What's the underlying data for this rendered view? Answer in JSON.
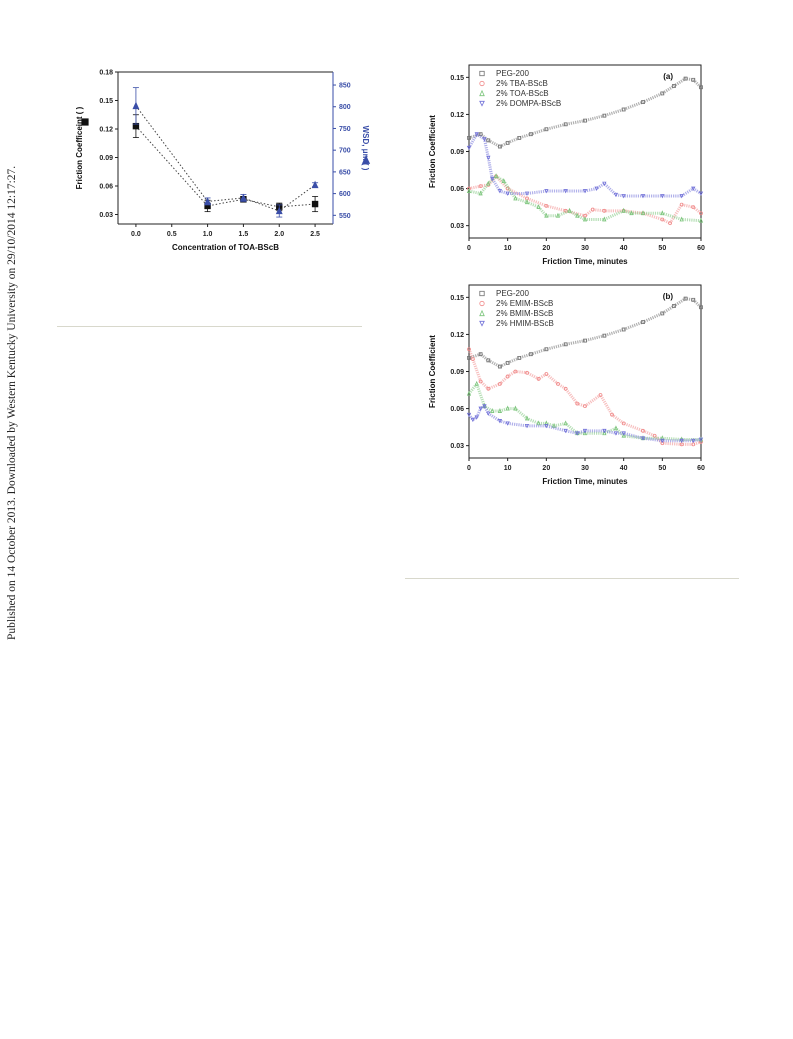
{
  "sidebar_note": "Published on 14 October 2013. Downloaded by Western Kentucky University on 29/10/2014 12:17:27.",
  "colors": {
    "black": "#222222",
    "blue": "#3a4ea8",
    "pink": "#f08a8a",
    "green": "#7ac47a",
    "navy": "#7070d8",
    "grey": "#707070"
  },
  "chart_data": [
    {
      "type": "scatter",
      "xlabel": "Concentration of TOA-BScB",
      "ylabel": "Friction Coefficeint (   )",
      "y2label": "WSD, μm (   )",
      "x_ticks": [
        "0.0",
        "0.5",
        "1.0",
        "1.5",
        "2.0",
        "2.5"
      ],
      "y_ticks": [
        "0.03",
        "0.06",
        "0.09",
        "0.12",
        "0.15",
        "0.18"
      ],
      "y2_ticks": [
        "550",
        "600",
        "650",
        "700",
        "750",
        "800",
        "850"
      ],
      "xlim": [
        -0.25,
        2.75
      ],
      "ylim": [
        0.02,
        0.18
      ],
      "y2lim": [
        530,
        880
      ],
      "series": [
        {
          "axis": "left",
          "marker": "square",
          "x": [
            0,
            1,
            1.5,
            2,
            2.5
          ],
          "y": [
            0.123,
            0.039,
            0.046,
            0.038,
            0.041
          ],
          "err": [
            0.012,
            0.006,
            0.003,
            0.004,
            0.008
          ]
        },
        {
          "axis": "right",
          "marker": "triangle",
          "x": [
            0,
            1,
            1.5,
            2,
            2.5
          ],
          "y": [
            802,
            582,
            590,
            560,
            620
          ],
          "err": [
            42,
            8,
            8,
            14,
            5
          ]
        }
      ]
    },
    {
      "type": "line",
      "panel_label": "(a)",
      "xlabel": "Friction Time, minutes",
      "ylabel": "Friction Coefficient",
      "xlim": [
        0,
        60
      ],
      "ylim": [
        0.02,
        0.16
      ],
      "x_ticks": [
        "0",
        "10",
        "20",
        "30",
        "40",
        "50",
        "60"
      ],
      "y_ticks": [
        "0.03",
        "0.06",
        "0.09",
        "0.12",
        "0.15"
      ],
      "series": [
        {
          "name": "PEG-200",
          "x": [
            0,
            3,
            5,
            8,
            10,
            13,
            16,
            20,
            25,
            30,
            35,
            40,
            45,
            50,
            53,
            56,
            58,
            60
          ],
          "y": [
            0.101,
            0.104,
            0.099,
            0.094,
            0.097,
            0.101,
            0.104,
            0.108,
            0.112,
            0.115,
            0.119,
            0.124,
            0.13,
            0.137,
            0.143,
            0.149,
            0.148,
            0.142
          ]
        },
        {
          "name": "2% TBA-BScB",
          "x": [
            0,
            3,
            5,
            7,
            10,
            15,
            20,
            25,
            30,
            32,
            35,
            40,
            45,
            50,
            52,
            55,
            58,
            60
          ],
          "y": [
            0.06,
            0.062,
            0.063,
            0.07,
            0.06,
            0.052,
            0.046,
            0.042,
            0.038,
            0.043,
            0.042,
            0.042,
            0.04,
            0.035,
            0.032,
            0.047,
            0.045,
            0.04
          ]
        },
        {
          "name": "2% TOA-BScB",
          "x": [
            0,
            3,
            5,
            7,
            9,
            12,
            15,
            18,
            20,
            23,
            26,
            28,
            30,
            35,
            40,
            42,
            45,
            50,
            55,
            60
          ],
          "y": [
            0.058,
            0.056,
            0.064,
            0.07,
            0.066,
            0.052,
            0.049,
            0.045,
            0.038,
            0.038,
            0.042,
            0.038,
            0.035,
            0.035,
            0.042,
            0.04,
            0.04,
            0.04,
            0.035,
            0.034
          ]
        },
        {
          "name": "2% DOMPA-BScB",
          "x": [
            0,
            2,
            4,
            5,
            6,
            8,
            10,
            15,
            20,
            25,
            30,
            33,
            35,
            38,
            40,
            45,
            50,
            55,
            58,
            60
          ],
          "y": [
            0.093,
            0.104,
            0.1,
            0.085,
            0.068,
            0.058,
            0.056,
            0.056,
            0.058,
            0.058,
            0.058,
            0.06,
            0.064,
            0.055,
            0.054,
            0.054,
            0.054,
            0.054,
            0.06,
            0.056
          ]
        }
      ]
    },
    {
      "type": "line",
      "panel_label": "(b)",
      "xlabel": "Friction Time, minutes",
      "ylabel": "Friction Coefficient",
      "xlim": [
        0,
        60
      ],
      "ylim": [
        0.02,
        0.16
      ],
      "x_ticks": [
        "0",
        "10",
        "20",
        "30",
        "40",
        "50",
        "60"
      ],
      "y_ticks": [
        "0.03",
        "0.06",
        "0.09",
        "0.12",
        "0.15"
      ],
      "series": [
        {
          "name": "PEG-200",
          "x": [
            0,
            3,
            5,
            8,
            10,
            13,
            16,
            20,
            25,
            30,
            35,
            40,
            45,
            50,
            53,
            56,
            58,
            60
          ],
          "y": [
            0.101,
            0.104,
            0.099,
            0.094,
            0.097,
            0.101,
            0.104,
            0.108,
            0.112,
            0.115,
            0.119,
            0.124,
            0.13,
            0.137,
            0.143,
            0.149,
            0.148,
            0.142
          ]
        },
        {
          "name": "2% EMIM-BScB",
          "x": [
            0,
            1,
            3,
            5,
            8,
            10,
            12,
            15,
            18,
            20,
            23,
            25,
            28,
            30,
            34,
            37,
            40,
            45,
            48,
            50,
            55,
            58,
            60
          ],
          "y": [
            0.108,
            0.1,
            0.082,
            0.076,
            0.08,
            0.086,
            0.09,
            0.089,
            0.084,
            0.088,
            0.08,
            0.076,
            0.064,
            0.062,
            0.071,
            0.055,
            0.048,
            0.042,
            0.038,
            0.032,
            0.031,
            0.031,
            0.033
          ]
        },
        {
          "name": "2% BMIM-BScB",
          "x": [
            0,
            2,
            4,
            6,
            8,
            10,
            12,
            15,
            18,
            20,
            22,
            25,
            28,
            30,
            35,
            38,
            40,
            45,
            50,
            55,
            60
          ],
          "y": [
            0.072,
            0.08,
            0.062,
            0.058,
            0.058,
            0.06,
            0.06,
            0.052,
            0.048,
            0.048,
            0.046,
            0.048,
            0.04,
            0.04,
            0.04,
            0.044,
            0.038,
            0.036,
            0.036,
            0.035,
            0.035
          ]
        },
        {
          "name": "2% HMIM-BScB",
          "x": [
            0,
            1,
            2,
            3,
            4,
            5,
            8,
            10,
            15,
            20,
            25,
            28,
            30,
            35,
            38,
            40,
            45,
            50,
            55,
            58,
            60
          ],
          "y": [
            0.055,
            0.051,
            0.053,
            0.06,
            0.062,
            0.056,
            0.05,
            0.048,
            0.046,
            0.046,
            0.042,
            0.04,
            0.042,
            0.042,
            0.04,
            0.04,
            0.036,
            0.034,
            0.034,
            0.034,
            0.035
          ]
        }
      ]
    }
  ]
}
